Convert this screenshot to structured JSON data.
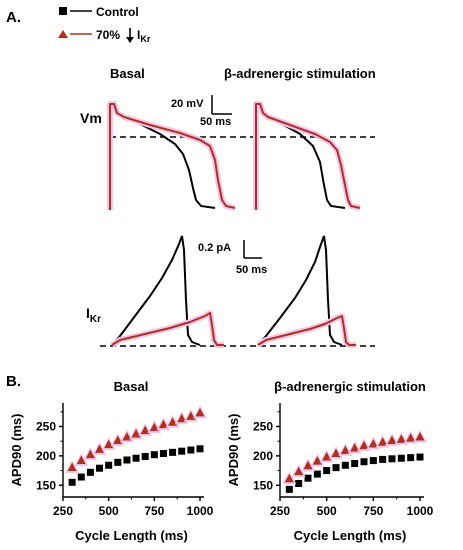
{
  "panel_a": {
    "label": "A.",
    "legend": {
      "control": "Control",
      "reduced_prefix": "70%",
      "reduced_current": "I",
      "reduced_sub": "Kr"
    },
    "basal_title": "Basal",
    "beta_title": "β-adrenergic stimulation",
    "vm_label": "Vm",
    "ikr_label": "I",
    "ikr_sub": "Kr",
    "vm_scale_v": "20 mV",
    "vm_scale_t": "50 ms",
    "ikr_scale_i": "0.2 pA",
    "ikr_scale_t": "50 ms"
  },
  "panel_b": {
    "label": "B."
  },
  "colors": {
    "control": "#000000",
    "reduced": "#b03020",
    "reduced_glow": "#f2c6ec"
  },
  "icons": {
    "control_marker": "black-square-marker",
    "reduced_marker": "brown-triangle-marker",
    "reduction_arrow": "down-arrow-icon"
  },
  "chart_data": [
    {
      "type": "scatter",
      "title": "Basal",
      "xlabel": "Cycle Length (ms)",
      "ylabel": "APD90 (ms)",
      "xlim": [
        250,
        1000
      ],
      "ylim": [
        130,
        290
      ],
      "x_ticks": [
        250,
        500,
        750,
        1000
      ],
      "x_tick_labels": [
        "250",
        "500",
        "750",
        "1000"
      ],
      "y_ticks": [
        150,
        200,
        250
      ],
      "y_tick_labels": [
        "150",
        "200",
        "250"
      ],
      "x": [
        300,
        350,
        400,
        450,
        500,
        550,
        600,
        650,
        700,
        750,
        800,
        850,
        900,
        950,
        1000
      ],
      "series": [
        {
          "name": "Control",
          "marker": "square",
          "values": [
            155,
            164,
            172,
            179,
            184,
            189,
            193,
            196,
            199,
            202,
            204,
            206,
            208,
            210,
            212
          ]
        },
        {
          "name": "70% IKr",
          "marker": "triangle",
          "values": [
            181,
            193,
            203,
            212,
            220,
            227,
            233,
            238,
            244,
            249,
            254,
            258,
            264,
            268,
            274
          ]
        }
      ]
    },
    {
      "type": "scatter",
      "title": "β-adrenergic stimulation",
      "xlabel": "Cycle Length (ms)",
      "ylabel": "APD90 (ms)",
      "xlim": [
        250,
        1000
      ],
      "ylim": [
        130,
        290
      ],
      "x_ticks": [
        250,
        500,
        750,
        1000
      ],
      "x_tick_labels": [
        "250",
        "500",
        "750",
        "1000"
      ],
      "y_ticks": [
        150,
        200,
        250
      ],
      "y_tick_labels": [
        "150",
        "200",
        "250"
      ],
      "x": [
        300,
        350,
        400,
        450,
        500,
        550,
        600,
        650,
        700,
        750,
        800,
        850,
        900,
        950,
        1000
      ],
      "series": [
        {
          "name": "Control",
          "marker": "square",
          "values": [
            143,
            153,
            162,
            169,
            175,
            180,
            184,
            187,
            190,
            192,
            194,
            195,
            196,
            197,
            198
          ]
        },
        {
          "name": "70% IKr",
          "marker": "triangle",
          "values": [
            162,
            174,
            184,
            192,
            199,
            205,
            210,
            214,
            218,
            221,
            224,
            227,
            229,
            231,
            233
          ]
        }
      ]
    }
  ]
}
